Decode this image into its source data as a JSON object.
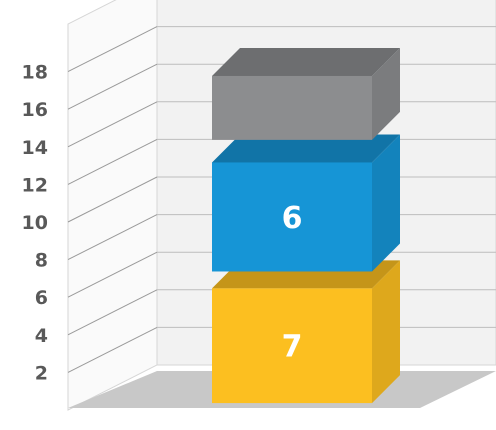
{
  "chart_data": {
    "type": "bar",
    "stacked": true,
    "three_d": true,
    "ylim": [
      0,
      20
    ],
    "y_ticks": [
      "2",
      "4",
      "6",
      "8",
      "10",
      "12",
      "14",
      "16",
      "18"
    ],
    "grid": true,
    "segments": [
      {
        "bottom": 0.9,
        "top": 7,
        "label": "7",
        "color": "#fcbf20"
      },
      {
        "bottom": 7.9,
        "top": 13.7,
        "label": "6",
        "color": "#1695d6"
      },
      {
        "bottom": 14.9,
        "top": 18.3,
        "label": "",
        "color": "#8c8d8f"
      }
    ]
  }
}
